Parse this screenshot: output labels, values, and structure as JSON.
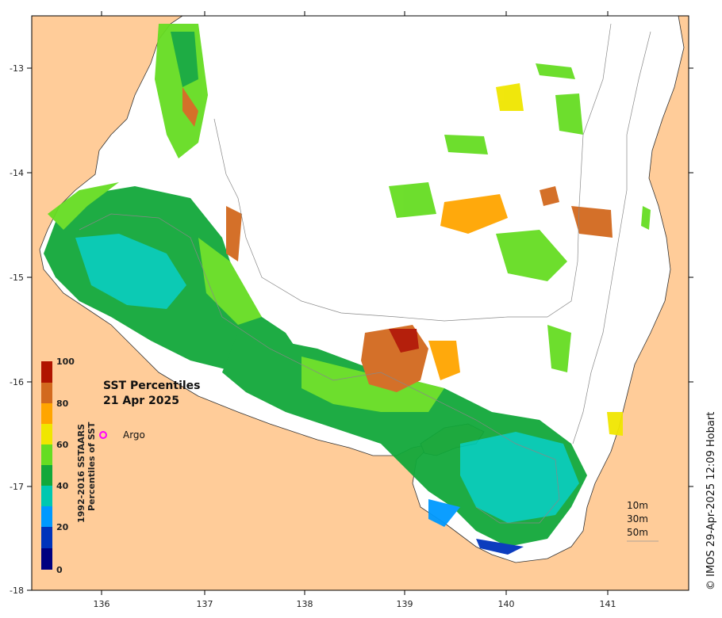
{
  "map": {
    "title": "SST Percentiles",
    "date": "21 Apr 2025",
    "colorbar_title_line1": "1992-2016 SSTAARS",
    "colorbar_title_line2": "Percentiles of SST",
    "credit": "© IMOS 29-Apr-2025 12:09 Hobart",
    "x_ticks": [
      "136",
      "137",
      "138",
      "139",
      "140",
      "141"
    ],
    "y_ticks": [
      "-13",
      "-14",
      "-15",
      "-16",
      "-17",
      "-18"
    ],
    "colorbar_ticks": [
      "100",
      "80",
      "60",
      "40",
      "20",
      "0"
    ],
    "colorbar_colors": [
      "#000080",
      "#0033bb",
      "#0099ff",
      "#00c8b0",
      "#12a83a",
      "#66dd22",
      "#f0e600",
      "#ffa500",
      "#d2691e",
      "#b01400"
    ],
    "argo_label": "Argo",
    "argo_marker_color": "#ff00ff",
    "depth_legend": [
      "10m",
      "30m",
      "50m"
    ],
    "land_color": "#ffcc99",
    "ocean_nodata_color": "#ffffff"
  }
}
